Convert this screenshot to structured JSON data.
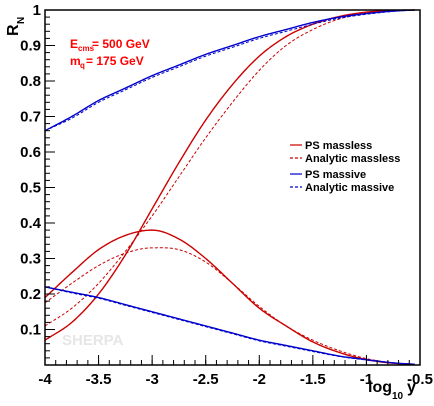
{
  "chart_data": {
    "type": "line",
    "xlabel_main": "log",
    "xlabel_sub": "10",
    "xlabel_var": "y",
    "ylabel_main": "R",
    "ylabel_sub": "N",
    "xlim": [
      -4,
      -0.5
    ],
    "ylim": [
      0.0,
      1.0
    ],
    "x_tick_labels": [
      "-4",
      "-3.5",
      "-3",
      "-2.5",
      "-2",
      "-1.5",
      "-1",
      "-0.5"
    ],
    "y_tick_labels": [
      "0.1",
      "0.2",
      "0.3",
      "0.4",
      "0.5",
      "0.6",
      "0.7",
      "0.8",
      "0.9",
      "1"
    ],
    "x_ticks": [
      -4,
      -3.5,
      -3,
      -2.5,
      -2,
      -1.5,
      -1,
      -0.5
    ],
    "y_ticks": [
      0.1,
      0.2,
      0.3,
      0.4,
      0.5,
      0.6,
      0.7,
      0.8,
      0.9,
      1.0
    ],
    "grid": false,
    "legend_position": "right",
    "annotations": {
      "ecms_main": "E",
      "ecms_sub": "cms",
      "ecms_value": "= 500 GeV",
      "mq_main": "m",
      "mq_sub": "q",
      "mq_value": "= 175 GeV",
      "watermark": "SHERPA"
    },
    "series": [
      {
        "name": "PS massless",
        "color": "#cc0000",
        "style": "solid",
        "legend": true,
        "x": [
          -4.0,
          -3.75,
          -3.5,
          -3.25,
          -3.0,
          -2.75,
          -2.5,
          -2.25,
          -2.0,
          -1.75,
          -1.5,
          -1.25,
          -1.0,
          -0.75,
          -0.55
        ],
        "y": [
          0.07,
          0.12,
          0.2,
          0.31,
          0.44,
          0.57,
          0.69,
          0.79,
          0.87,
          0.925,
          0.96,
          0.982,
          0.994,
          0.999,
          1.0
        ]
      },
      {
        "name": "Analytic massless",
        "color": "#cc0000",
        "style": "dashed",
        "legend": true,
        "x": [
          -4.0,
          -3.75,
          -3.5,
          -3.25,
          -3.0,
          -2.75,
          -2.5,
          -2.25,
          -2.0,
          -1.75,
          -1.5,
          -1.25,
          -1.0,
          -0.75,
          -0.55
        ],
        "y": [
          0.11,
          0.16,
          0.23,
          0.32,
          0.42,
          0.53,
          0.64,
          0.74,
          0.83,
          0.9,
          0.945,
          0.975,
          0.99,
          0.998,
          1.0
        ]
      },
      {
        "name": "PS massive",
        "color": "#0000cc",
        "style": "solid",
        "legend": true,
        "x": [
          -4.0,
          -3.75,
          -3.5,
          -3.25,
          -3.0,
          -2.75,
          -2.5,
          -2.25,
          -2.0,
          -1.75,
          -1.5,
          -1.25,
          -1.0,
          -0.75,
          -0.55
        ],
        "y": [
          0.66,
          0.7,
          0.745,
          0.78,
          0.815,
          0.845,
          0.875,
          0.9,
          0.925,
          0.945,
          0.965,
          0.98,
          0.99,
          0.997,
          1.0
        ]
      },
      {
        "name": "Analytic massive",
        "color": "#0000cc",
        "style": "dashed",
        "legend": true,
        "x": [
          -4.0,
          -3.75,
          -3.5,
          -3.25,
          -3.0,
          -2.75,
          -2.5,
          -2.25,
          -2.0,
          -1.75,
          -1.5,
          -1.25,
          -1.0,
          -0.75,
          -0.55
        ],
        "y": [
          0.66,
          0.695,
          0.74,
          0.775,
          0.81,
          0.84,
          0.87,
          0.895,
          0.92,
          0.94,
          0.96,
          0.977,
          0.988,
          0.996,
          1.0
        ]
      },
      {
        "name": "",
        "color": "#cc0000",
        "style": "solid",
        "legend": false,
        "x": [
          -4.0,
          -3.75,
          -3.5,
          -3.25,
          -3.0,
          -2.75,
          -2.5,
          -2.25,
          -2.0,
          -1.75,
          -1.5,
          -1.25,
          -1.0,
          -0.75,
          -0.55
        ],
        "y": [
          0.19,
          0.26,
          0.325,
          0.365,
          0.38,
          0.355,
          0.3,
          0.23,
          0.16,
          0.11,
          0.065,
          0.035,
          0.015,
          0.005,
          0.002
        ]
      },
      {
        "name": "",
        "color": "#cc0000",
        "style": "dashed",
        "legend": false,
        "x": [
          -4.0,
          -3.75,
          -3.5,
          -3.25,
          -3.0,
          -2.75,
          -2.5,
          -2.25,
          -2.0,
          -1.75,
          -1.5,
          -1.25,
          -1.0,
          -0.75,
          -0.55
        ],
        "y": [
          0.175,
          0.23,
          0.28,
          0.315,
          0.33,
          0.325,
          0.29,
          0.23,
          0.165,
          0.11,
          0.07,
          0.04,
          0.018,
          0.006,
          0.002
        ]
      },
      {
        "name": "",
        "color": "#0000cc",
        "style": "solid",
        "legend": false,
        "x": [
          -4.0,
          -3.75,
          -3.5,
          -3.25,
          -3.0,
          -2.75,
          -2.5,
          -2.25,
          -2.0,
          -1.75,
          -1.5,
          -1.25,
          -1.0,
          -0.75,
          -0.55
        ],
        "y": [
          0.22,
          0.205,
          0.19,
          0.17,
          0.15,
          0.13,
          0.11,
          0.09,
          0.07,
          0.055,
          0.04,
          0.025,
          0.015,
          0.006,
          0.002
        ]
      },
      {
        "name": "",
        "color": "#0000cc",
        "style": "dashed",
        "legend": false,
        "x": [
          -4.0,
          -3.75,
          -3.5,
          -3.25,
          -3.0,
          -2.75,
          -2.5,
          -2.25,
          -2.0,
          -1.75,
          -1.5,
          -1.25,
          -1.0,
          -0.75,
          -0.55
        ],
        "y": [
          0.22,
          0.203,
          0.188,
          0.168,
          0.148,
          0.128,
          0.108,
          0.088,
          0.068,
          0.053,
          0.038,
          0.024,
          0.014,
          0.006,
          0.002
        ]
      }
    ]
  }
}
